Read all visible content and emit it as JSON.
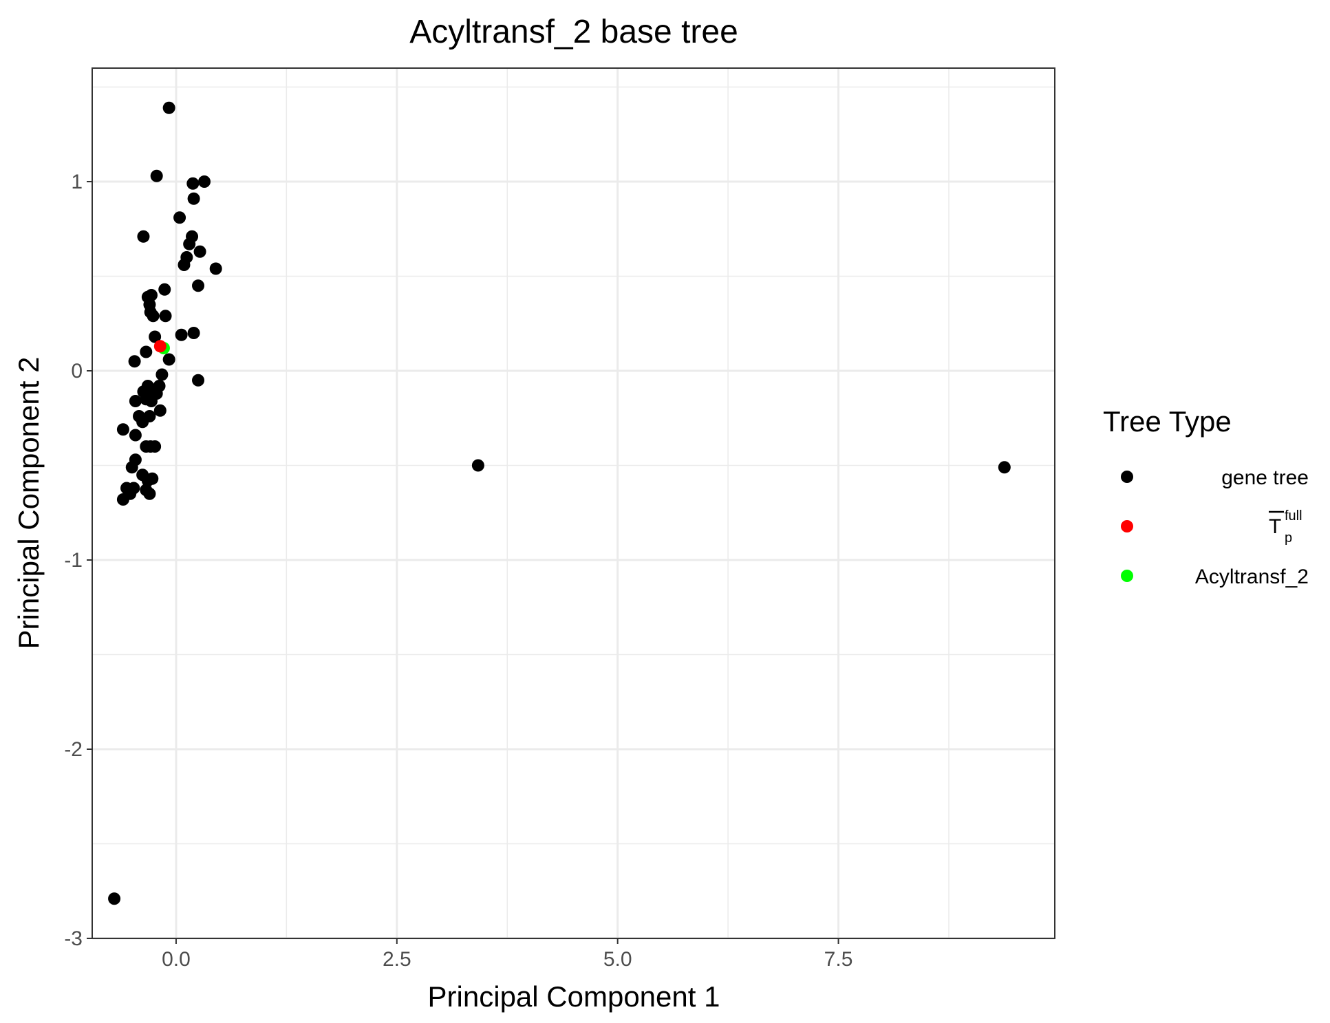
{
  "chart_data": {
    "type": "scatter",
    "title": "Acyltransf_2 base tree",
    "xlabel": "Principal Component 1",
    "ylabel": "Principal Component 2",
    "xlim": [
      -0.95,
      9.95
    ],
    "ylim": [
      -3.0,
      1.6
    ],
    "x_ticks": [
      0.0,
      2.5,
      5.0,
      7.5
    ],
    "x_tick_labels": [
      "0.0",
      "2.5",
      "5.0",
      "7.5"
    ],
    "x_minor": [
      -1.25,
      1.25,
      3.75,
      6.25,
      8.75
    ],
    "y_ticks": [
      -3,
      -2,
      -1,
      0,
      1
    ],
    "y_tick_labels": [
      "-3",
      "-2",
      "-1",
      "0",
      "1"
    ],
    "y_minor": [
      -2.5,
      -1.5,
      -0.5,
      0.5,
      1.5
    ],
    "grid": true,
    "legend": {
      "title": "Tree Type",
      "placement": "right",
      "entries": [
        {
          "label": "gene tree",
          "color": "#000000"
        },
        {
          "label": "T",
          "superscript": "full",
          "subscript": "p",
          "overline": true,
          "color": "#ff0000"
        },
        {
          "label": "Acyltransf_2",
          "color": "#00ff00"
        }
      ]
    },
    "series": [
      {
        "name": "gene tree",
        "color": "#000000",
        "points": [
          [
            -0.08,
            1.39
          ],
          [
            -0.22,
            1.03
          ],
          [
            0.19,
            0.99
          ],
          [
            0.32,
            1.0
          ],
          [
            0.2,
            0.91
          ],
          [
            0.04,
            0.81
          ],
          [
            -0.37,
            0.71
          ],
          [
            0.18,
            0.71
          ],
          [
            0.15,
            0.67
          ],
          [
            0.27,
            0.63
          ],
          [
            0.12,
            0.6
          ],
          [
            0.09,
            0.56
          ],
          [
            0.45,
            0.54
          ],
          [
            0.25,
            0.45
          ],
          [
            -0.13,
            0.43
          ],
          [
            -0.28,
            0.4
          ],
          [
            -0.32,
            0.39
          ],
          [
            -0.3,
            0.35
          ],
          [
            -0.29,
            0.31
          ],
          [
            -0.26,
            0.29
          ],
          [
            -0.12,
            0.29
          ],
          [
            0.06,
            0.19
          ],
          [
            0.2,
            0.2
          ],
          [
            -0.24,
            0.18
          ],
          [
            -0.34,
            0.1
          ],
          [
            -0.47,
            0.05
          ],
          [
            -0.08,
            0.06
          ],
          [
            -0.16,
            -0.02
          ],
          [
            0.25,
            -0.05
          ],
          [
            -0.32,
            -0.08
          ],
          [
            -0.19,
            -0.08
          ],
          [
            -0.37,
            -0.11
          ],
          [
            -0.26,
            -0.11
          ],
          [
            -0.29,
            -0.13
          ],
          [
            -0.22,
            -0.12
          ],
          [
            -0.34,
            -0.15
          ],
          [
            -0.46,
            -0.16
          ],
          [
            -0.28,
            -0.16
          ],
          [
            -0.18,
            -0.21
          ],
          [
            -0.3,
            -0.24
          ],
          [
            -0.42,
            -0.24
          ],
          [
            -0.38,
            -0.27
          ],
          [
            -0.6,
            -0.31
          ],
          [
            -0.46,
            -0.34
          ],
          [
            -0.34,
            -0.4
          ],
          [
            -0.29,
            -0.4
          ],
          [
            -0.24,
            -0.4
          ],
          [
            -0.46,
            -0.47
          ],
          [
            -0.5,
            -0.51
          ],
          [
            -0.38,
            -0.55
          ],
          [
            -0.27,
            -0.57
          ],
          [
            -0.32,
            -0.58
          ],
          [
            -0.56,
            -0.62
          ],
          [
            -0.48,
            -0.62
          ],
          [
            -0.34,
            -0.63
          ],
          [
            -0.52,
            -0.65
          ],
          [
            -0.3,
            -0.65
          ],
          [
            -0.6,
            -0.68
          ],
          [
            -0.7,
            -2.79
          ],
          [
            3.42,
            -0.5
          ],
          [
            9.38,
            -0.51
          ]
        ]
      },
      {
        "name": "T",
        "color": "#ff0000",
        "points": [
          [
            -0.18,
            0.13
          ]
        ]
      },
      {
        "name": "Acyltransf_2",
        "color": "#00ff00",
        "points": [
          [
            -0.14,
            0.12
          ]
        ]
      }
    ]
  }
}
